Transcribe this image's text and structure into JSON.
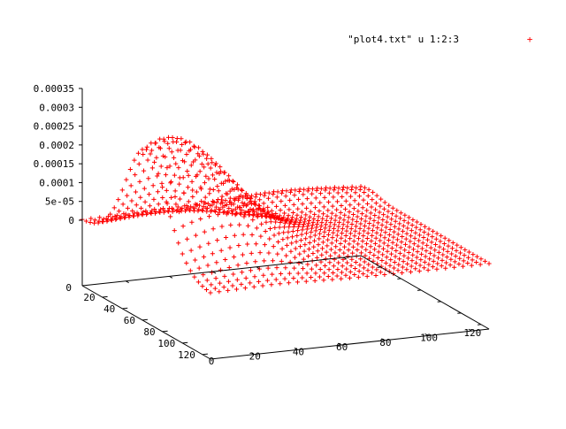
{
  "chart_data": {
    "type": "surface3d",
    "legend": {
      "label": "\"plot4.txt\" u 1:2:3",
      "marker": "+",
      "color": "#ff0000",
      "position": "top-right"
    },
    "x_axis": {
      "range": [
        0,
        128
      ],
      "ticks": [
        0,
        20,
        40,
        60,
        80,
        100,
        120
      ]
    },
    "y_axis": {
      "range": [
        0,
        128
      ],
      "ticks": [
        0,
        20,
        40,
        60,
        80,
        100,
        120
      ]
    },
    "z_axis": {
      "range": [
        0,
        0.00035
      ],
      "ticks": [
        {
          "value": 0,
          "label": "0"
        },
        {
          "value": 5e-05,
          "label": "5e-05"
        },
        {
          "value": 0.0001,
          "label": "0.0001"
        },
        {
          "value": 0.00015,
          "label": "0.00015"
        },
        {
          "value": 0.0002,
          "label": "0.0002"
        },
        {
          "value": 0.00025,
          "label": "0.00025"
        },
        {
          "value": 0.0003,
          "label": "0.0003"
        },
        {
          "value": 0.00035,
          "label": "0.00035"
        }
      ]
    },
    "ticslevel_label": "0",
    "series": [
      {
        "color": "#ff0000",
        "marker": "+",
        "grid": {
          "x_step": 4,
          "y_step": 4
        },
        "components": [
          {
            "x": 64,
            "y": 10,
            "amplitude": 0.000305,
            "sigma_x": 20,
            "sigma_y": 26
          },
          {
            "x": 34,
            "y": 28,
            "amplitude": 3.8e-05,
            "sigma_x": 12,
            "sigma_y": 12
          },
          {
            "x": 98,
            "y": 32,
            "amplitude": 4.8e-05,
            "sigma_x": 14,
            "sigma_y": 16
          },
          {
            "x": 8,
            "y": 92,
            "amplitude": 2.8e-05,
            "sigma_x": 10,
            "sigma_y": 30
          },
          {
            "x": 62,
            "y": 60,
            "amplitude": 2e-05,
            "sigma_x": 26,
            "sigma_y": 26
          }
        ]
      }
    ]
  }
}
